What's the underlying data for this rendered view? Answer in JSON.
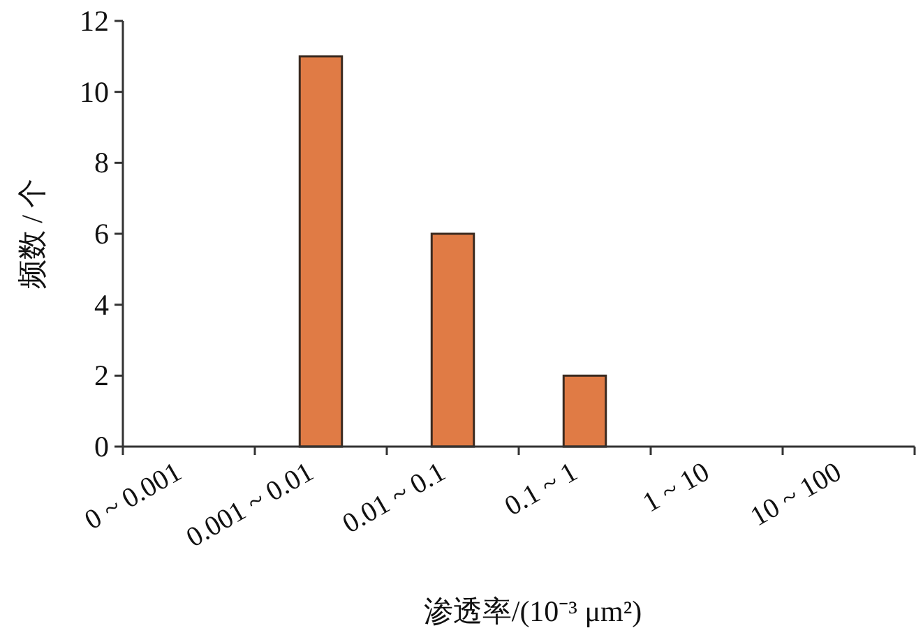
{
  "chart_data": {
    "type": "bar",
    "xlabel": "渗透率/(10⁻³ μm²)",
    "ylabel": "频数 / 个",
    "categories": [
      "0 ~ 0.001",
      "0.001 ~ 0.01",
      "0.01 ~ 0.1",
      "0.1 ~ 1",
      "1 ~ 10",
      "10 ~ 100"
    ],
    "values": [
      0,
      11,
      6,
      2,
      0,
      0
    ],
    "color": "#e07b45",
    "ylim": [
      0,
      12
    ],
    "yticks": [
      0,
      2,
      4,
      6,
      8,
      10,
      12
    ],
    "grid": false
  }
}
